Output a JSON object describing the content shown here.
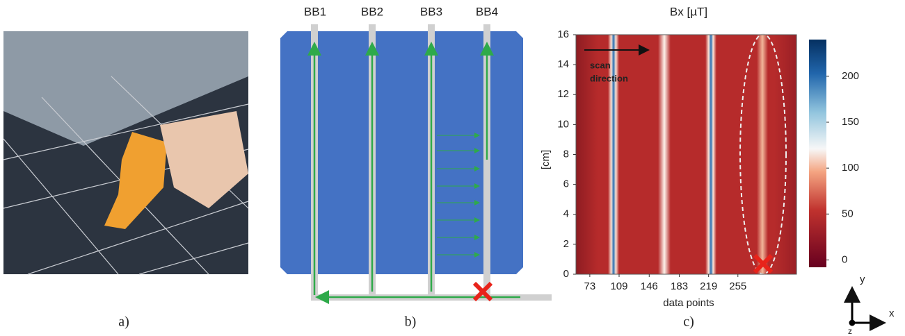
{
  "panels": {
    "a": {
      "label": "a)"
    },
    "b": {
      "label": "b)",
      "busbars": [
        "BB1",
        "BB2",
        "BB3",
        "BB4"
      ]
    },
    "c": {
      "label": "c)"
    }
  },
  "chart_data": {
    "type": "heatmap",
    "title": "Bx [µT]",
    "xlabel": "data points",
    "ylabel": "[cm]",
    "xlim": [
      56,
      327
    ],
    "ylim": [
      0,
      16
    ],
    "xticks": [
      73,
      109,
      146,
      183,
      219,
      255
    ],
    "yticks": [
      0,
      2,
      4,
      6,
      8,
      10,
      12,
      14,
      16
    ],
    "colorbar": {
      "lim": [
        -8,
        240
      ],
      "ticks": [
        0,
        50,
        100,
        150,
        200
      ]
    },
    "annotation": [
      "scan",
      "direction"
    ]
  },
  "axes_legend": {
    "x": "x",
    "y": "y",
    "z": "z"
  }
}
